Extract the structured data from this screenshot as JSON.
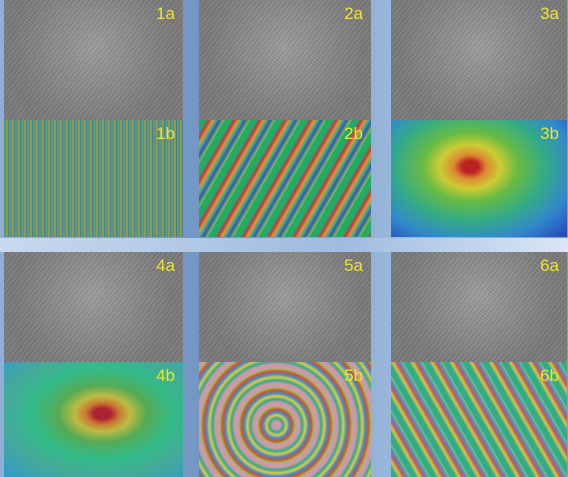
{
  "panels": [
    {
      "top_label": "1a",
      "bottom_label": "1b"
    },
    {
      "top_label": "2a",
      "bottom_label": "2b"
    },
    {
      "top_label": "3a",
      "bottom_label": "3b"
    },
    {
      "top_label": "4a",
      "bottom_label": "4b"
    },
    {
      "top_label": "5a",
      "bottom_label": "5b"
    },
    {
      "top_label": "6a",
      "bottom_label": "6b"
    }
  ]
}
